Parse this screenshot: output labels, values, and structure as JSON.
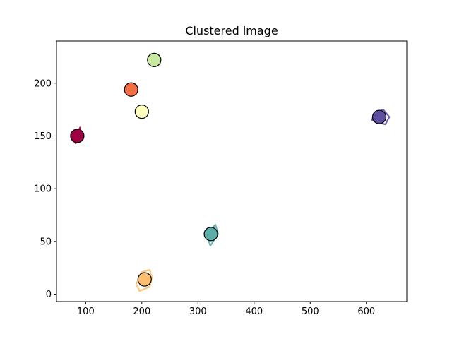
{
  "chart_data": {
    "type": "scatter",
    "title": "Clustered image",
    "xlabel": "",
    "ylabel": "",
    "xlim": [
      48,
      672
    ],
    "ylim": [
      -7,
      240
    ],
    "xticks": [
      100,
      200,
      300,
      400,
      500,
      600
    ],
    "yticks": [
      0,
      50,
      100,
      150,
      200
    ],
    "grid": false,
    "series": [
      {
        "color": "#9e0142",
        "center": [
          85,
          150
        ],
        "outline": [
          [
            80,
            147
          ],
          [
            84,
            152
          ],
          [
            90,
            158
          ],
          [
            92,
            152
          ],
          [
            88,
            145
          ],
          [
            82,
            143
          ]
        ]
      },
      {
        "color": "#f46d43",
        "center": [
          181,
          194
        ],
        "outline": [
          [
            177,
            190
          ],
          [
            179,
            198
          ],
          [
            186,
            199
          ],
          [
            189,
            194
          ],
          [
            186,
            189
          ],
          [
            180,
            189
          ]
        ]
      },
      {
        "color": "#ffffbf",
        "center": [
          200,
          173
        ],
        "outline": [
          [
            195,
            169
          ],
          [
            196,
            177
          ],
          [
            204,
            178
          ],
          [
            207,
            174
          ],
          [
            203,
            168
          ],
          [
            197,
            168
          ]
        ]
      },
      {
        "color": "#c7e9a0",
        "center": [
          222,
          222
        ],
        "outline": [
          [
            216,
            218
          ],
          [
            218,
            225
          ],
          [
            227,
            227
          ],
          [
            234,
            224
          ],
          [
            230,
            218
          ],
          [
            220,
            216
          ]
        ]
      },
      {
        "color": "#fdbf6f",
        "center": [
          205,
          14
        ],
        "outline": [
          [
            190,
            10
          ],
          [
            196,
            3
          ],
          [
            214,
            7
          ],
          [
            218,
            16
          ],
          [
            214,
            23
          ],
          [
            200,
            21
          ]
        ]
      },
      {
        "color": "#5aada8",
        "center": [
          323,
          57
        ],
        "outline": [
          [
            318,
            52
          ],
          [
            322,
            46
          ],
          [
            336,
            57
          ],
          [
            331,
            66
          ],
          [
            324,
            62
          ],
          [
            318,
            58
          ]
        ]
      },
      {
        "color": "#5e4fa2",
        "center": [
          623,
          168
        ],
        "outline": [
          [
            610,
            165
          ],
          [
            614,
            171
          ],
          [
            630,
            175
          ],
          [
            641,
            168
          ],
          [
            634,
            161
          ],
          [
            618,
            163
          ]
        ]
      }
    ]
  }
}
